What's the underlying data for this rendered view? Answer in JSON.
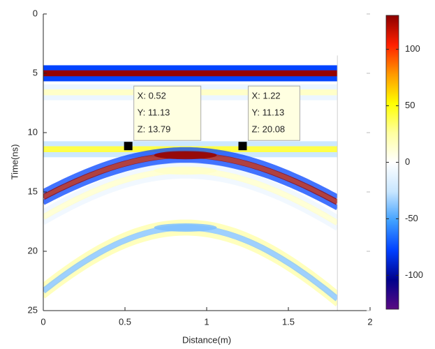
{
  "chart_data": {
    "type": "image",
    "xlabel": "Distance(m)",
    "ylabel": "Time(ns)",
    "xlim": [
      0,
      2
    ],
    "xticks": [
      0,
      0.5,
      1,
      1.5,
      2
    ],
    "ylim": [
      0,
      25
    ],
    "yticks": [
      0,
      5,
      10,
      15,
      20,
      25
    ],
    "y_reversed": true,
    "image_xlim": [
      0,
      1.8
    ],
    "reflectors": [
      {
        "shape": "horizontal",
        "y": 5,
        "amplitude": 128
      },
      {
        "shape": "horizontal",
        "y": 6.6,
        "amplitude": 15
      },
      {
        "shape": "horizontal",
        "y": 11.4,
        "amplitude": 40
      },
      {
        "shape": "hyperbola",
        "x": 0.87,
        "y": 11.9,
        "amplitude": 128
      },
      {
        "shape": "hyperbola",
        "x": 0.87,
        "y": 13.2,
        "amplitude": 15
      },
      {
        "shape": "hyperbola",
        "x": 0.87,
        "y": 18,
        "amplitude": -40
      }
    ],
    "colorbar": {
      "clim": [
        -130,
        130
      ],
      "ticks": [
        -100,
        -50,
        0,
        50,
        100
      ],
      "colormap": [
        "#5a0a82",
        "#00008c",
        "#0040ff",
        "#3fa0ff",
        "#c8e6ff",
        "#ffffff",
        "#ffffa0",
        "#ffff00",
        "#ff9900",
        "#ff2000",
        "#8c0000"
      ]
    },
    "datatips": [
      {
        "x": 0.52,
        "y": 11.13,
        "z": 13.79,
        "lines": [
          "X: 0.52",
          "Y: 11.13",
          "Z: 13.79"
        ]
      },
      {
        "x": 1.22,
        "y": 11.13,
        "z": 20.08,
        "lines": [
          "X: 1.22",
          "Y: 11.13",
          "Z: 20.08"
        ]
      }
    ]
  }
}
